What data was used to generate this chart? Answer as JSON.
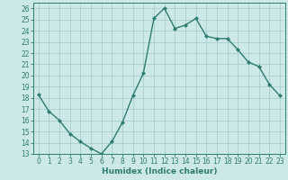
{
  "x": [
    0,
    1,
    2,
    3,
    4,
    5,
    6,
    7,
    8,
    9,
    10,
    11,
    12,
    13,
    14,
    15,
    16,
    17,
    18,
    19,
    20,
    21,
    22,
    23
  ],
  "y": [
    18.3,
    16.8,
    16.0,
    14.8,
    14.1,
    13.5,
    13.0,
    14.1,
    15.8,
    18.2,
    20.2,
    25.1,
    26.0,
    24.2,
    24.5,
    25.1,
    23.5,
    23.3,
    23.3,
    22.3,
    21.2,
    20.8,
    19.2,
    18.2
  ],
  "line_color": "#2e7d6e",
  "marker": "D",
  "markersize": 2.0,
  "linewidth": 1.0,
  "bg_color": "#cce8e8",
  "grid_color": "#aacece",
  "xlabel": "Humidex (Indice chaleur)",
  "xlim": [
    -0.5,
    23.5
  ],
  "ylim": [
    13,
    26.5
  ],
  "xticks": [
    0,
    1,
    2,
    3,
    4,
    5,
    6,
    7,
    8,
    9,
    10,
    11,
    12,
    13,
    14,
    15,
    16,
    17,
    18,
    19,
    20,
    21,
    22,
    23
  ],
  "yticks": [
    13,
    14,
    15,
    16,
    17,
    18,
    19,
    20,
    21,
    22,
    23,
    24,
    25,
    26
  ],
  "tick_fontsize": 5.5,
  "xlabel_fontsize": 6.5
}
